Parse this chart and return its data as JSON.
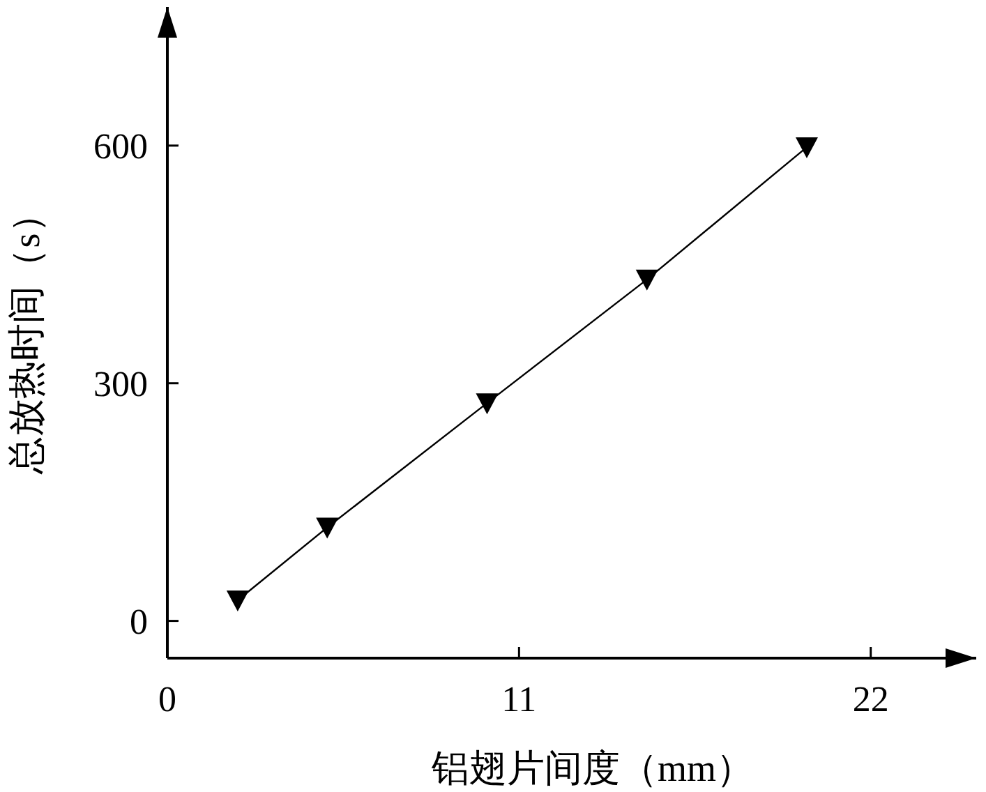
{
  "chart_data": {
    "type": "line",
    "xlabel": "铝翅片间度（mm）",
    "ylabel": "总放热时间（s）",
    "x": [
      2.2,
      5,
      10,
      15,
      20
    ],
    "series": [
      {
        "color": "#000000",
        "values": [
          26,
          118,
          275,
          431,
          598
        ]
      }
    ],
    "marker": "triangle",
    "line_style": "solid",
    "grid": false,
    "xlim": [
      0,
      25.3
    ],
    "ylim": [
      -47,
      775
    ],
    "xticks": [
      0,
      11,
      22
    ],
    "yticks": [
      0,
      300,
      600
    ]
  }
}
